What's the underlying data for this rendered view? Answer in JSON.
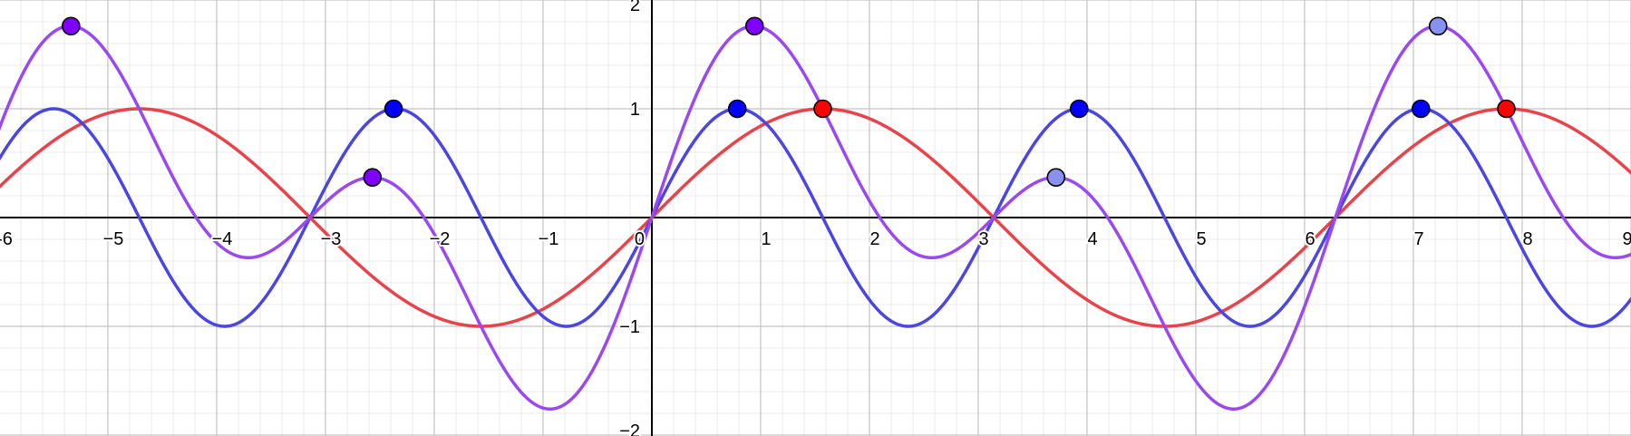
{
  "chart_data": {
    "type": "line",
    "title": "",
    "xlabel": "",
    "ylabel": "",
    "xlim": [
      -6,
      9
    ],
    "ylim": [
      -2,
      2
    ],
    "grid": true,
    "minor_grid": true,
    "x_ticks": [
      -6,
      -5,
      -4,
      -3,
      -2,
      -1,
      0,
      1,
      2,
      3,
      4,
      5,
      6,
      7,
      8,
      9
    ],
    "x_tick_labels": [
      "-6",
      "−5",
      "−4",
      "−3",
      "−2",
      "−1",
      "0",
      "1",
      "2",
      "3",
      "4",
      "5",
      "6",
      "7",
      "8",
      "9"
    ],
    "y_ticks": [
      -2,
      -1,
      1,
      2
    ],
    "y_tick_labels": [
      "−2",
      "−1",
      "1",
      "2"
    ],
    "series": [
      {
        "fn": "sin(x)",
        "color": "#e8434a"
      },
      {
        "fn": "sin(2x)",
        "color": "#4b46e0"
      },
      {
        "fn": "sin(x)+sin(2x)",
        "color": "#9a48f0"
      }
    ],
    "points": [
      {
        "x": -5.339,
        "y": 1.76,
        "color": "#8000ff"
      },
      {
        "x": -2.374,
        "y": 1.0,
        "color": "#0000ff"
      },
      {
        "x": -2.568,
        "y": 0.369,
        "color": "#8000ff"
      },
      {
        "x": 0.785,
        "y": 1.0,
        "color": "#0000ff"
      },
      {
        "x": 0.944,
        "y": 1.76,
        "color": "#8000ff"
      },
      {
        "x": 1.571,
        "y": 1.0,
        "color": "#ff0000"
      },
      {
        "x": 3.927,
        "y": 1.0,
        "color": "#0000ff"
      },
      {
        "x": 3.715,
        "y": 0.369,
        "color": "#8890f0"
      },
      {
        "x": 7.069,
        "y": 1.0,
        "color": "#0000ff"
      },
      {
        "x": 7.227,
        "y": 1.76,
        "color": "#8890f0"
      },
      {
        "x": 7.854,
        "y": 1.0,
        "color": "#ff0000"
      }
    ]
  }
}
